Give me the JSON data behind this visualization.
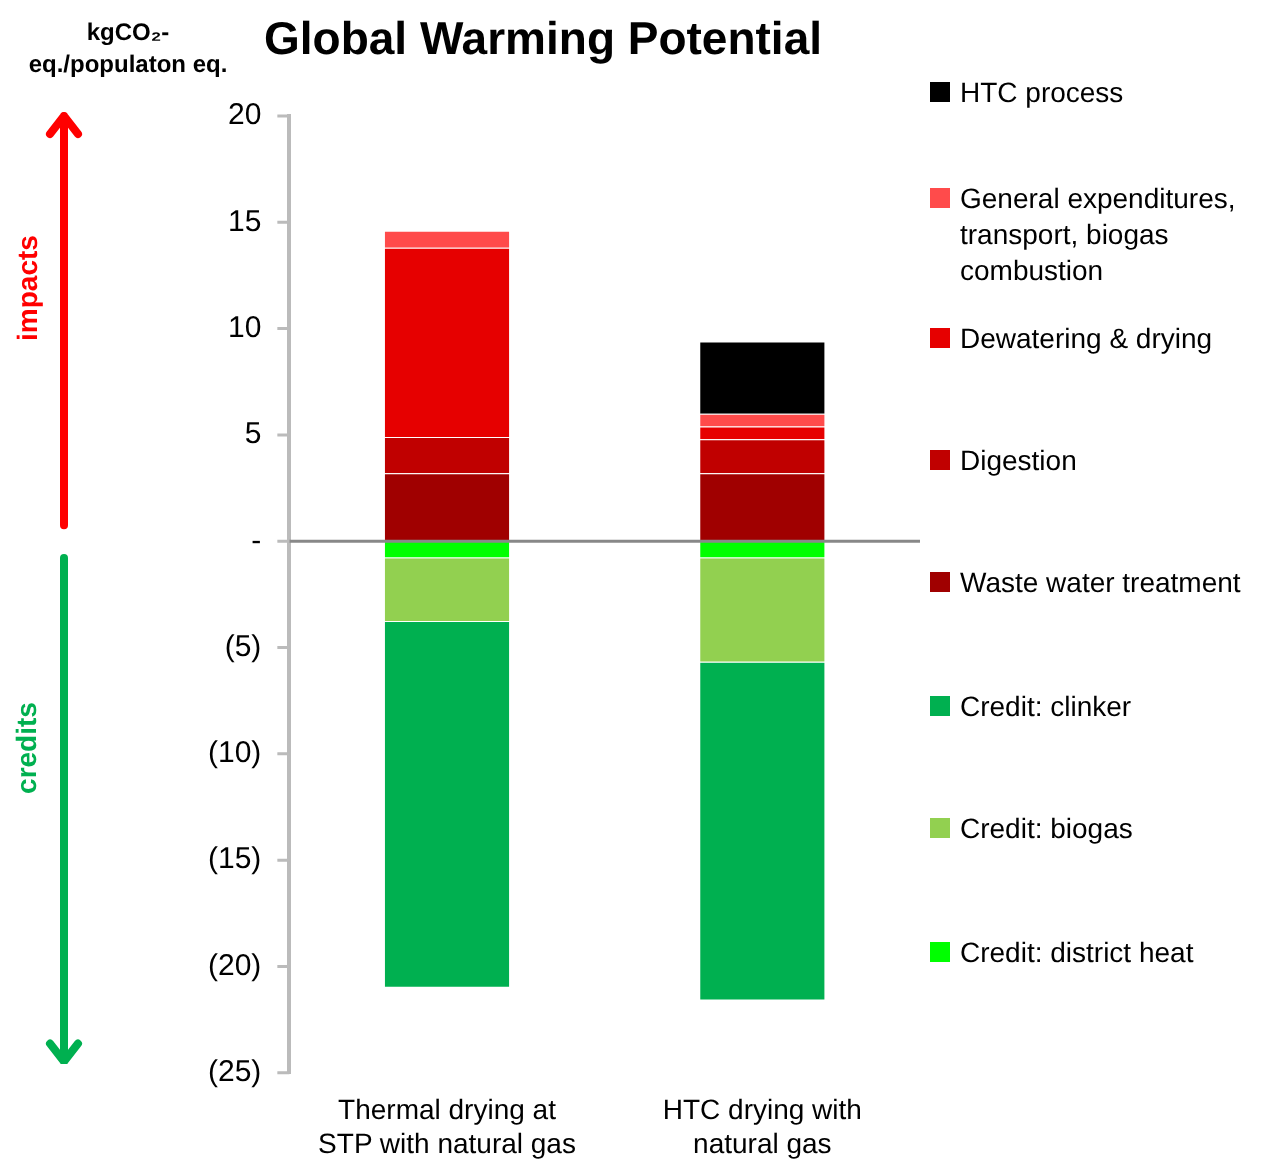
{
  "chart_data": {
    "type": "bar",
    "stacked": true,
    "title": "Global Warming Potential",
    "ylabel": "kgCO₂-eq./populaton eq.",
    "categories": [
      "Thermal drying at STP with natural gas",
      "HTC drying with natural gas"
    ],
    "series": [
      {
        "name": "Waste water treatment",
        "color": "#a00000",
        "values": [
          3.2,
          3.2
        ]
      },
      {
        "name": "Digestion",
        "color": "#c00000",
        "values": [
          1.7,
          1.6
        ]
      },
      {
        "name": "Dewatering & drying",
        "color": "#e60000",
        "values": [
          8.9,
          0.6
        ]
      },
      {
        "name": "General expenditures, transport, biogas combustion",
        "color": "#ff4b4b",
        "values": [
          0.8,
          0.6
        ]
      },
      {
        "name": "HTC process",
        "color": "#000000",
        "values": [
          0,
          3.4
        ]
      },
      {
        "name": "Credit: district heat",
        "color": "#00ff00",
        "values": [
          -0.8,
          -0.8
        ]
      },
      {
        "name": "Credit: biogas",
        "color": "#92d050",
        "values": [
          -3.0,
          -4.9
        ]
      },
      {
        "name": "Credit: clinker",
        "color": "#00b050",
        "values": [
          -17.2,
          -15.9
        ]
      }
    ],
    "ylim": [
      -25,
      20
    ],
    "yticks": [
      20,
      15,
      10,
      5,
      {
        "value": 0,
        "label": "-"
      },
      {
        "value": -5,
        "label": "(5)"
      },
      {
        "value": -10,
        "label": "(10)"
      },
      {
        "value": -15,
        "label": "(15)"
      },
      {
        "value": -20,
        "label": "(20)"
      },
      {
        "value": -25,
        "label": "(25)"
      }
    ],
    "grid": false,
    "legend": "right",
    "ref_lines": [
      {
        "axis": "y",
        "value": 0,
        "color": "#888888"
      }
    ],
    "annotations": [
      "impacts",
      "credits"
    ]
  }
}
